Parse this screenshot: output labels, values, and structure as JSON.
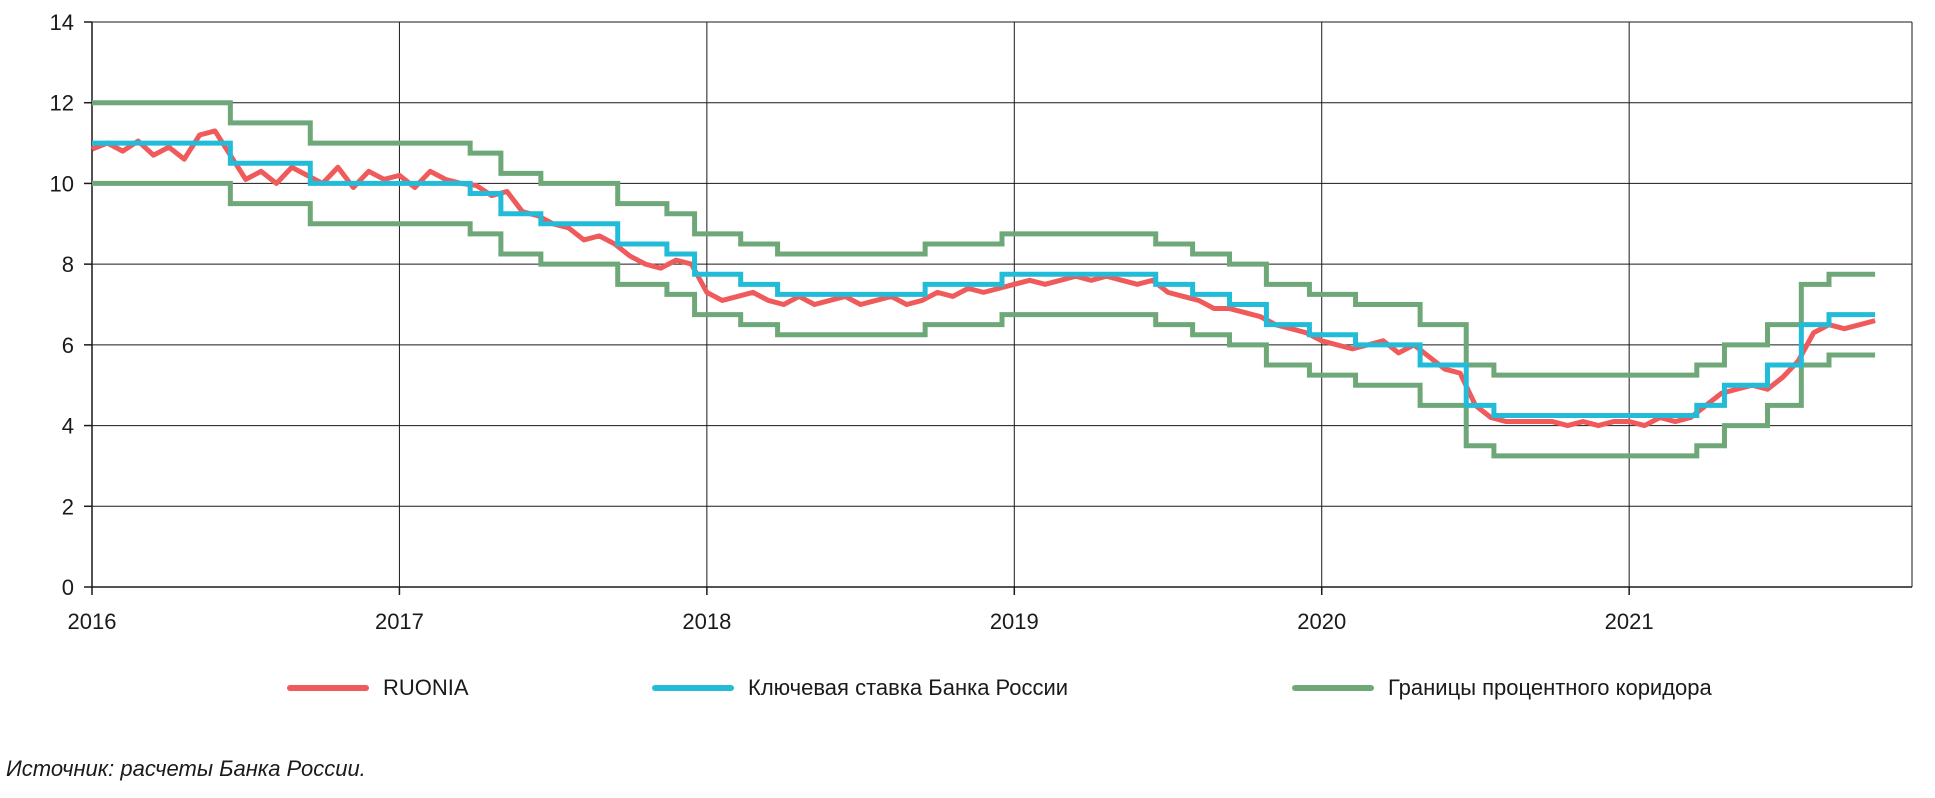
{
  "chart_data": {
    "type": "line",
    "xlabel": "",
    "ylabel": "",
    "xlim": [
      2016.0,
      2021.92
    ],
    "ylim": [
      0,
      14
    ],
    "y_ticks": [
      0,
      2,
      4,
      6,
      8,
      10,
      12,
      14
    ],
    "x_ticks": [
      2016,
      2017,
      2018,
      2019,
      2020,
      2021
    ],
    "x_tick_labels": [
      "2016",
      "2017",
      "2018",
      "2019",
      "2020",
      "2021"
    ],
    "grid": true,
    "legend_position": "bottom",
    "series": [
      {
        "name": "RUONIA",
        "color": "#f05a5a",
        "x": [
          2016.0,
          2016.05,
          2016.1,
          2016.15,
          2016.2,
          2016.25,
          2016.3,
          2016.35,
          2016.4,
          2016.45,
          2016.5,
          2016.55,
          2016.6,
          2016.65,
          2016.7,
          2016.75,
          2016.8,
          2016.85,
          2016.9,
          2016.95,
          2017.0,
          2017.05,
          2017.1,
          2017.15,
          2017.2,
          2017.25,
          2017.3,
          2017.35,
          2017.4,
          2017.45,
          2017.5,
          2017.55,
          2017.6,
          2017.65,
          2017.7,
          2017.75,
          2017.8,
          2017.85,
          2017.9,
          2017.95,
          2018.0,
          2018.05,
          2018.1,
          2018.15,
          2018.2,
          2018.25,
          2018.3,
          2018.35,
          2018.4,
          2018.45,
          2018.5,
          2018.55,
          2018.6,
          2018.65,
          2018.7,
          2018.75,
          2018.8,
          2018.85,
          2018.9,
          2018.95,
          2019.0,
          2019.05,
          2019.1,
          2019.15,
          2019.2,
          2019.25,
          2019.3,
          2019.35,
          2019.4,
          2019.45,
          2019.5,
          2019.55,
          2019.6,
          2019.65,
          2019.7,
          2019.75,
          2019.8,
          2019.85,
          2019.9,
          2019.95,
          2020.0,
          2020.05,
          2020.1,
          2020.15,
          2020.2,
          2020.25,
          2020.3,
          2020.35,
          2020.4,
          2020.45,
          2020.5,
          2020.55,
          2020.6,
          2020.65,
          2020.7,
          2020.75,
          2020.8,
          2020.85,
          2020.9,
          2020.95,
          2021.0,
          2021.05,
          2021.1,
          2021.15,
          2021.2,
          2021.25,
          2021.3,
          2021.35,
          2021.4,
          2021.45,
          2021.5,
          2021.55,
          2021.6,
          2021.65,
          2021.7,
          2021.75,
          2021.8
        ],
        "values": [
          10.85,
          11.0,
          10.8,
          11.05,
          10.7,
          10.9,
          10.6,
          11.2,
          11.3,
          10.7,
          10.1,
          10.3,
          10.0,
          10.4,
          10.2,
          10.0,
          10.4,
          9.9,
          10.3,
          10.1,
          10.2,
          9.9,
          10.3,
          10.1,
          10.0,
          9.95,
          9.7,
          9.8,
          9.3,
          9.2,
          9.0,
          8.9,
          8.6,
          8.7,
          8.5,
          8.2,
          8.0,
          7.9,
          8.1,
          8.0,
          7.3,
          7.1,
          7.2,
          7.3,
          7.1,
          7.0,
          7.2,
          7.0,
          7.1,
          7.2,
          7.0,
          7.1,
          7.2,
          7.0,
          7.1,
          7.3,
          7.2,
          7.4,
          7.3,
          7.4,
          7.5,
          7.6,
          7.5,
          7.6,
          7.7,
          7.6,
          7.7,
          7.6,
          7.5,
          7.6,
          7.3,
          7.2,
          7.1,
          6.9,
          6.9,
          6.8,
          6.7,
          6.5,
          6.4,
          6.3,
          6.1,
          6.0,
          5.9,
          6.0,
          6.1,
          5.8,
          6.0,
          5.7,
          5.4,
          5.3,
          4.5,
          4.2,
          4.1,
          4.1,
          4.1,
          4.1,
          4.0,
          4.1,
          4.0,
          4.1,
          4.1,
          4.0,
          4.2,
          4.1,
          4.2,
          4.5,
          4.8,
          4.9,
          5.0,
          4.9,
          5.2,
          5.6,
          6.3,
          6.5,
          6.4,
          6.5,
          6.6
        ]
      },
      {
        "name": "Ключевая ставка Банка России",
        "color": "#22bcd8",
        "step_x": [
          2016.0,
          2016.45,
          2016.71,
          2017.23,
          2017.33,
          2017.46,
          2017.71,
          2017.87,
          2017.96,
          2018.11,
          2018.23,
          2018.71,
          2018.96,
          2019.46,
          2019.58,
          2019.7,
          2019.82,
          2019.96,
          2020.11,
          2020.32,
          2020.47,
          2020.56,
          2021.22,
          2021.31,
          2021.45,
          2021.56,
          2021.65,
          2021.8
        ],
        "step_values": [
          11.0,
          10.5,
          10.0,
          9.75,
          9.25,
          9.0,
          8.5,
          8.25,
          7.75,
          7.5,
          7.25,
          7.5,
          7.75,
          7.5,
          7.25,
          7.0,
          6.5,
          6.25,
          6.0,
          5.5,
          4.5,
          4.25,
          4.5,
          5.0,
          5.5,
          6.5,
          6.75,
          6.75
        ]
      },
      {
        "name": "Границы процентного коридора",
        "color": "#6fa878",
        "step_x": [
          2016.0,
          2016.45,
          2016.71,
          2017.23,
          2017.33,
          2017.46,
          2017.71,
          2017.87,
          2017.96,
          2018.11,
          2018.23,
          2018.71,
          2018.96,
          2019.46,
          2019.58,
          2019.7,
          2019.82,
          2019.96,
          2020.11,
          2020.32,
          2020.47,
          2020.56,
          2021.22,
          2021.31,
          2021.45,
          2021.56,
          2021.65,
          2021.8
        ],
        "upper": [
          12.0,
          11.5,
          11.0,
          10.75,
          10.25,
          10.0,
          9.5,
          9.25,
          8.75,
          8.5,
          8.25,
          8.5,
          8.75,
          8.5,
          8.25,
          8.0,
          7.5,
          7.25,
          7.0,
          6.5,
          5.5,
          5.25,
          5.5,
          6.0,
          6.5,
          7.5,
          7.75,
          7.75
        ],
        "lower": [
          10.0,
          9.5,
          9.0,
          8.75,
          8.25,
          8.0,
          7.5,
          7.25,
          6.75,
          6.5,
          6.25,
          6.5,
          6.75,
          6.5,
          6.25,
          6.0,
          5.5,
          5.25,
          5.0,
          4.5,
          3.5,
          3.25,
          3.5,
          4.0,
          4.5,
          5.5,
          5.75,
          5.75
        ]
      }
    ],
    "legend": [
      "RUONIA",
      "Ключевая ставка Банка России",
      "Границы процентного коридора"
    ]
  },
  "source_note": "Источник: расчеты Банка России."
}
